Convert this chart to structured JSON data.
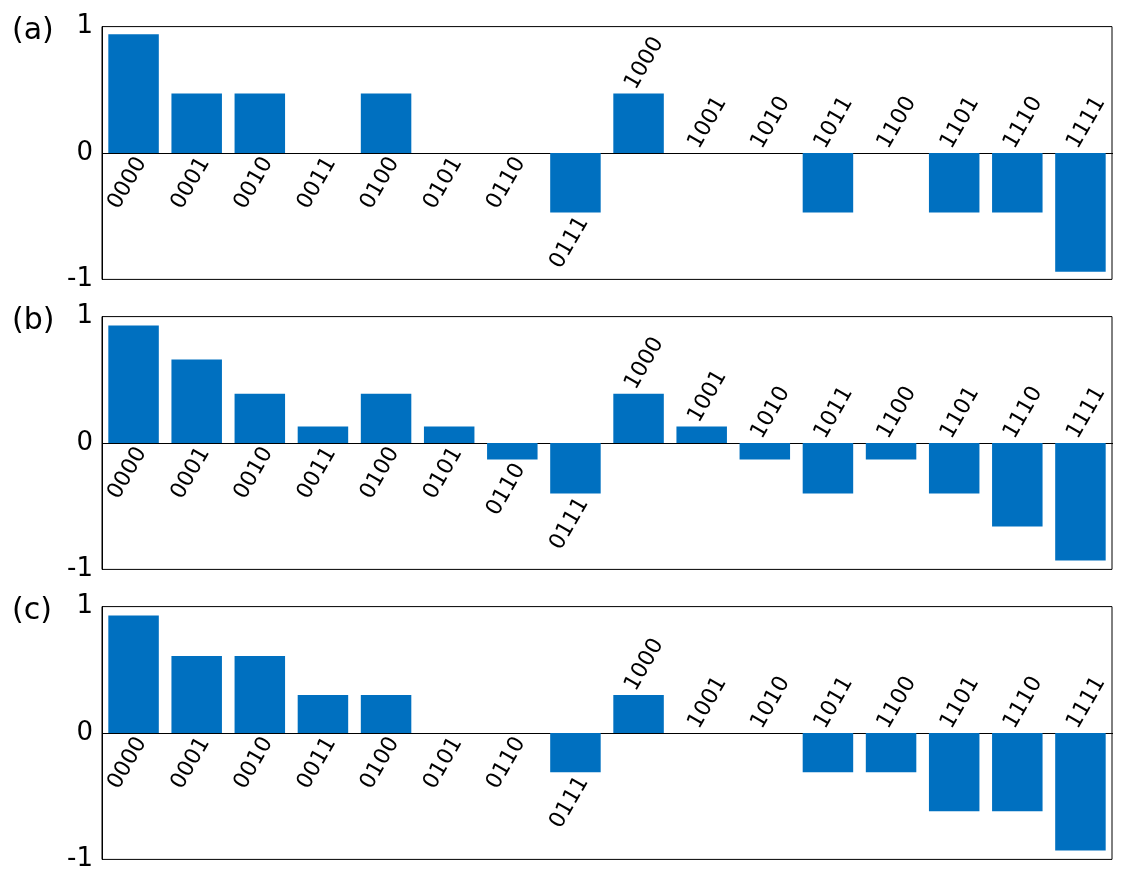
{
  "chart_data": [
    {
      "type": "bar",
      "title": "(a)",
      "categories": [
        "0000",
        "0001",
        "0010",
        "0011",
        "0100",
        "0101",
        "0110",
        "0111",
        "1000",
        "1001",
        "1010",
        "1011",
        "1100",
        "1101",
        "1110",
        "1111"
      ],
      "color": "#0070c0",
      "values": [
        0.94,
        0.47,
        0.47,
        0,
        0.47,
        0,
        0,
        -0.47,
        0.47,
        0,
        0,
        -0.47,
        0,
        -0.47,
        -0.47,
        -0.94
      ],
      "ylim": [
        -1,
        1
      ],
      "yticks": [
        -1,
        0,
        1
      ],
      "grid": false
    },
    {
      "type": "bar",
      "title": "(b)",
      "categories": [
        "0000",
        "0001",
        "0010",
        "0011",
        "0100",
        "0101",
        "0110",
        "0111",
        "1000",
        "1001",
        "1010",
        "1011",
        "1100",
        "1101",
        "1110",
        "1111"
      ],
      "color": "#0070c0",
      "values": [
        0.93,
        0.66,
        0.39,
        0.13,
        0.39,
        0.13,
        -0.13,
        -0.4,
        0.39,
        0.13,
        -0.13,
        -0.4,
        -0.13,
        -0.4,
        -0.66,
        -0.93
      ],
      "ylim": [
        -1,
        1
      ],
      "yticks": [
        -1,
        0,
        1
      ],
      "grid": false
    },
    {
      "type": "bar",
      "title": "(c)",
      "categories": [
        "0000",
        "0001",
        "0010",
        "0011",
        "0100",
        "0101",
        "0110",
        "0111",
        "1000",
        "1001",
        "1010",
        "1011",
        "1100",
        "1101",
        "1110",
        "1111"
      ],
      "color": "#0070c0",
      "values": [
        0.93,
        0.61,
        0.61,
        0.3,
        0.3,
        0,
        0,
        -0.31,
        0.3,
        0,
        0,
        -0.31,
        -0.31,
        -0.62,
        -0.62,
        -0.93
      ],
      "ylim": [
        -1,
        1
      ],
      "yticks": [
        -1,
        0,
        1
      ],
      "grid": false
    }
  ]
}
